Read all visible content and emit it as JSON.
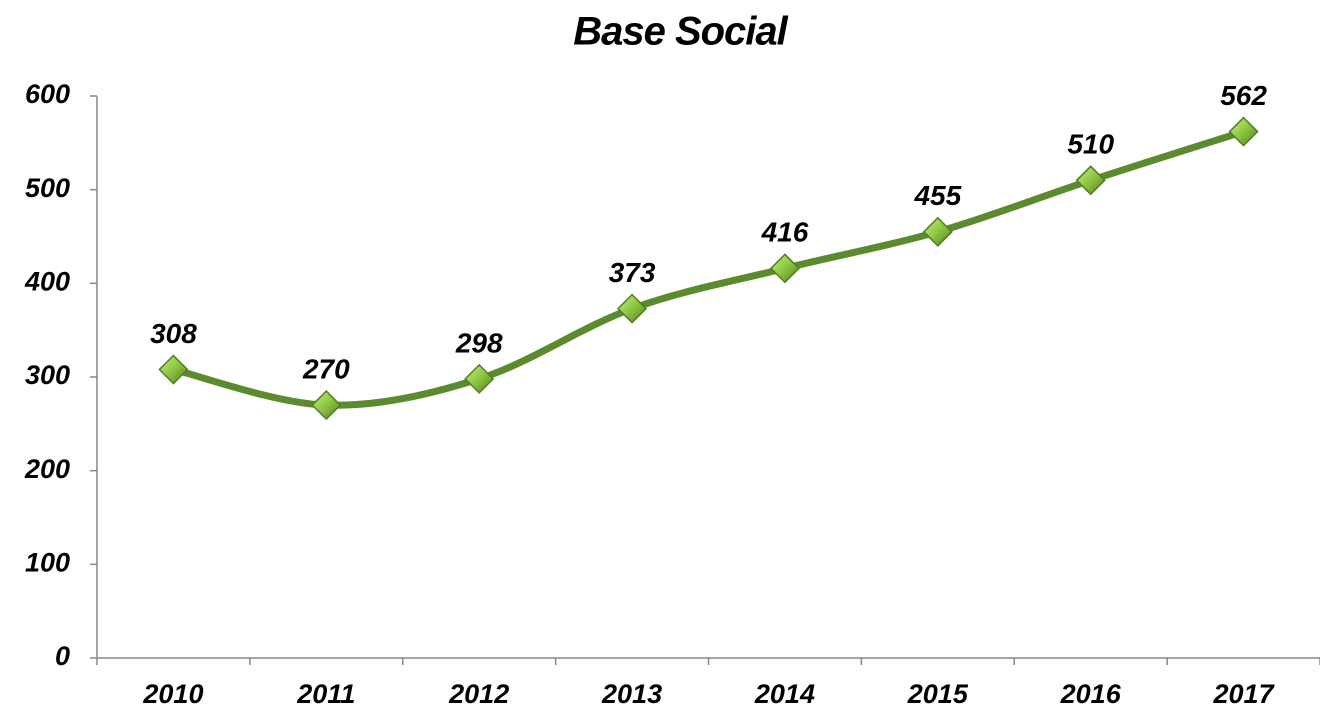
{
  "chart_data": {
    "type": "line",
    "title": "Base Social",
    "categories": [
      "2010",
      "2011",
      "2012",
      "2013",
      "2014",
      "2015",
      "2016",
      "2017"
    ],
    "series": [
      {
        "name": "Base Social",
        "color": "#5b8a2f",
        "marker_color": "#8cc63f",
        "values": [
          308,
          270,
          298,
          373,
          416,
          455,
          510,
          562
        ]
      }
    ],
    "ylim": [
      0,
      600
    ],
    "yticks": [
      0,
      100,
      200,
      300,
      400,
      500,
      600
    ],
    "grid": false,
    "smooth": true
  }
}
